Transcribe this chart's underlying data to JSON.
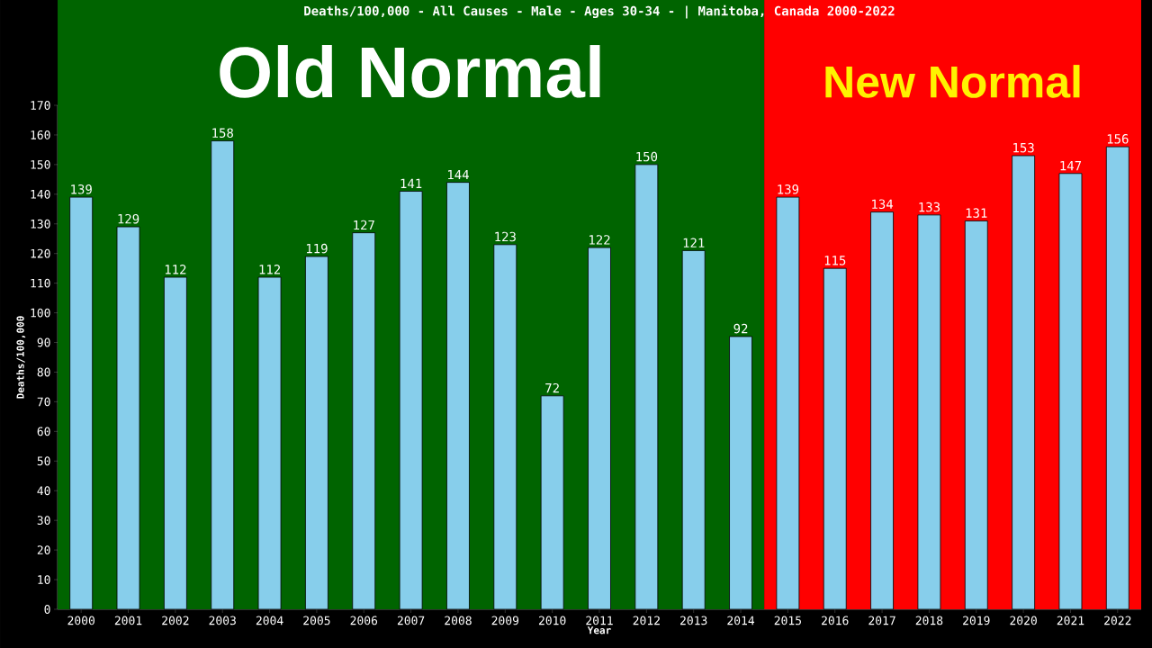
{
  "chart_data": {
    "type": "bar",
    "title": "Deaths/100,000 - All Causes - Male - Ages 30-34 -  | Manitoba, Canada 2000-2022",
    "xlabel": "Year",
    "ylabel": "Deaths/100,000",
    "categories": [
      "2000",
      "2001",
      "2002",
      "2003",
      "2004",
      "2005",
      "2006",
      "2007",
      "2008",
      "2009",
      "2010",
      "2011",
      "2012",
      "2013",
      "2014",
      "2015",
      "2016",
      "2017",
      "2018",
      "2019",
      "2020",
      "2021",
      "2022"
    ],
    "values": [
      139,
      129,
      112,
      158,
      112,
      119,
      127,
      141,
      144,
      123,
      72,
      122,
      150,
      121,
      92,
      139,
      115,
      134,
      133,
      131,
      153,
      147,
      156
    ],
    "color": "#87ceeb",
    "data_labels": true,
    "ylim": [
      0,
      170
    ],
    "yticks": [
      0,
      10,
      20,
      30,
      40,
      50,
      60,
      70,
      80,
      90,
      100,
      110,
      120,
      130,
      140,
      150,
      160,
      170
    ],
    "bands": [
      {
        "axis": "x",
        "from": "2000",
        "to": "2014",
        "label": "Old Normal",
        "color": "#006400"
      },
      {
        "axis": "x",
        "from": "2015",
        "to": "2022",
        "label": "New Normal",
        "color": "#ff0000"
      }
    ]
  }
}
